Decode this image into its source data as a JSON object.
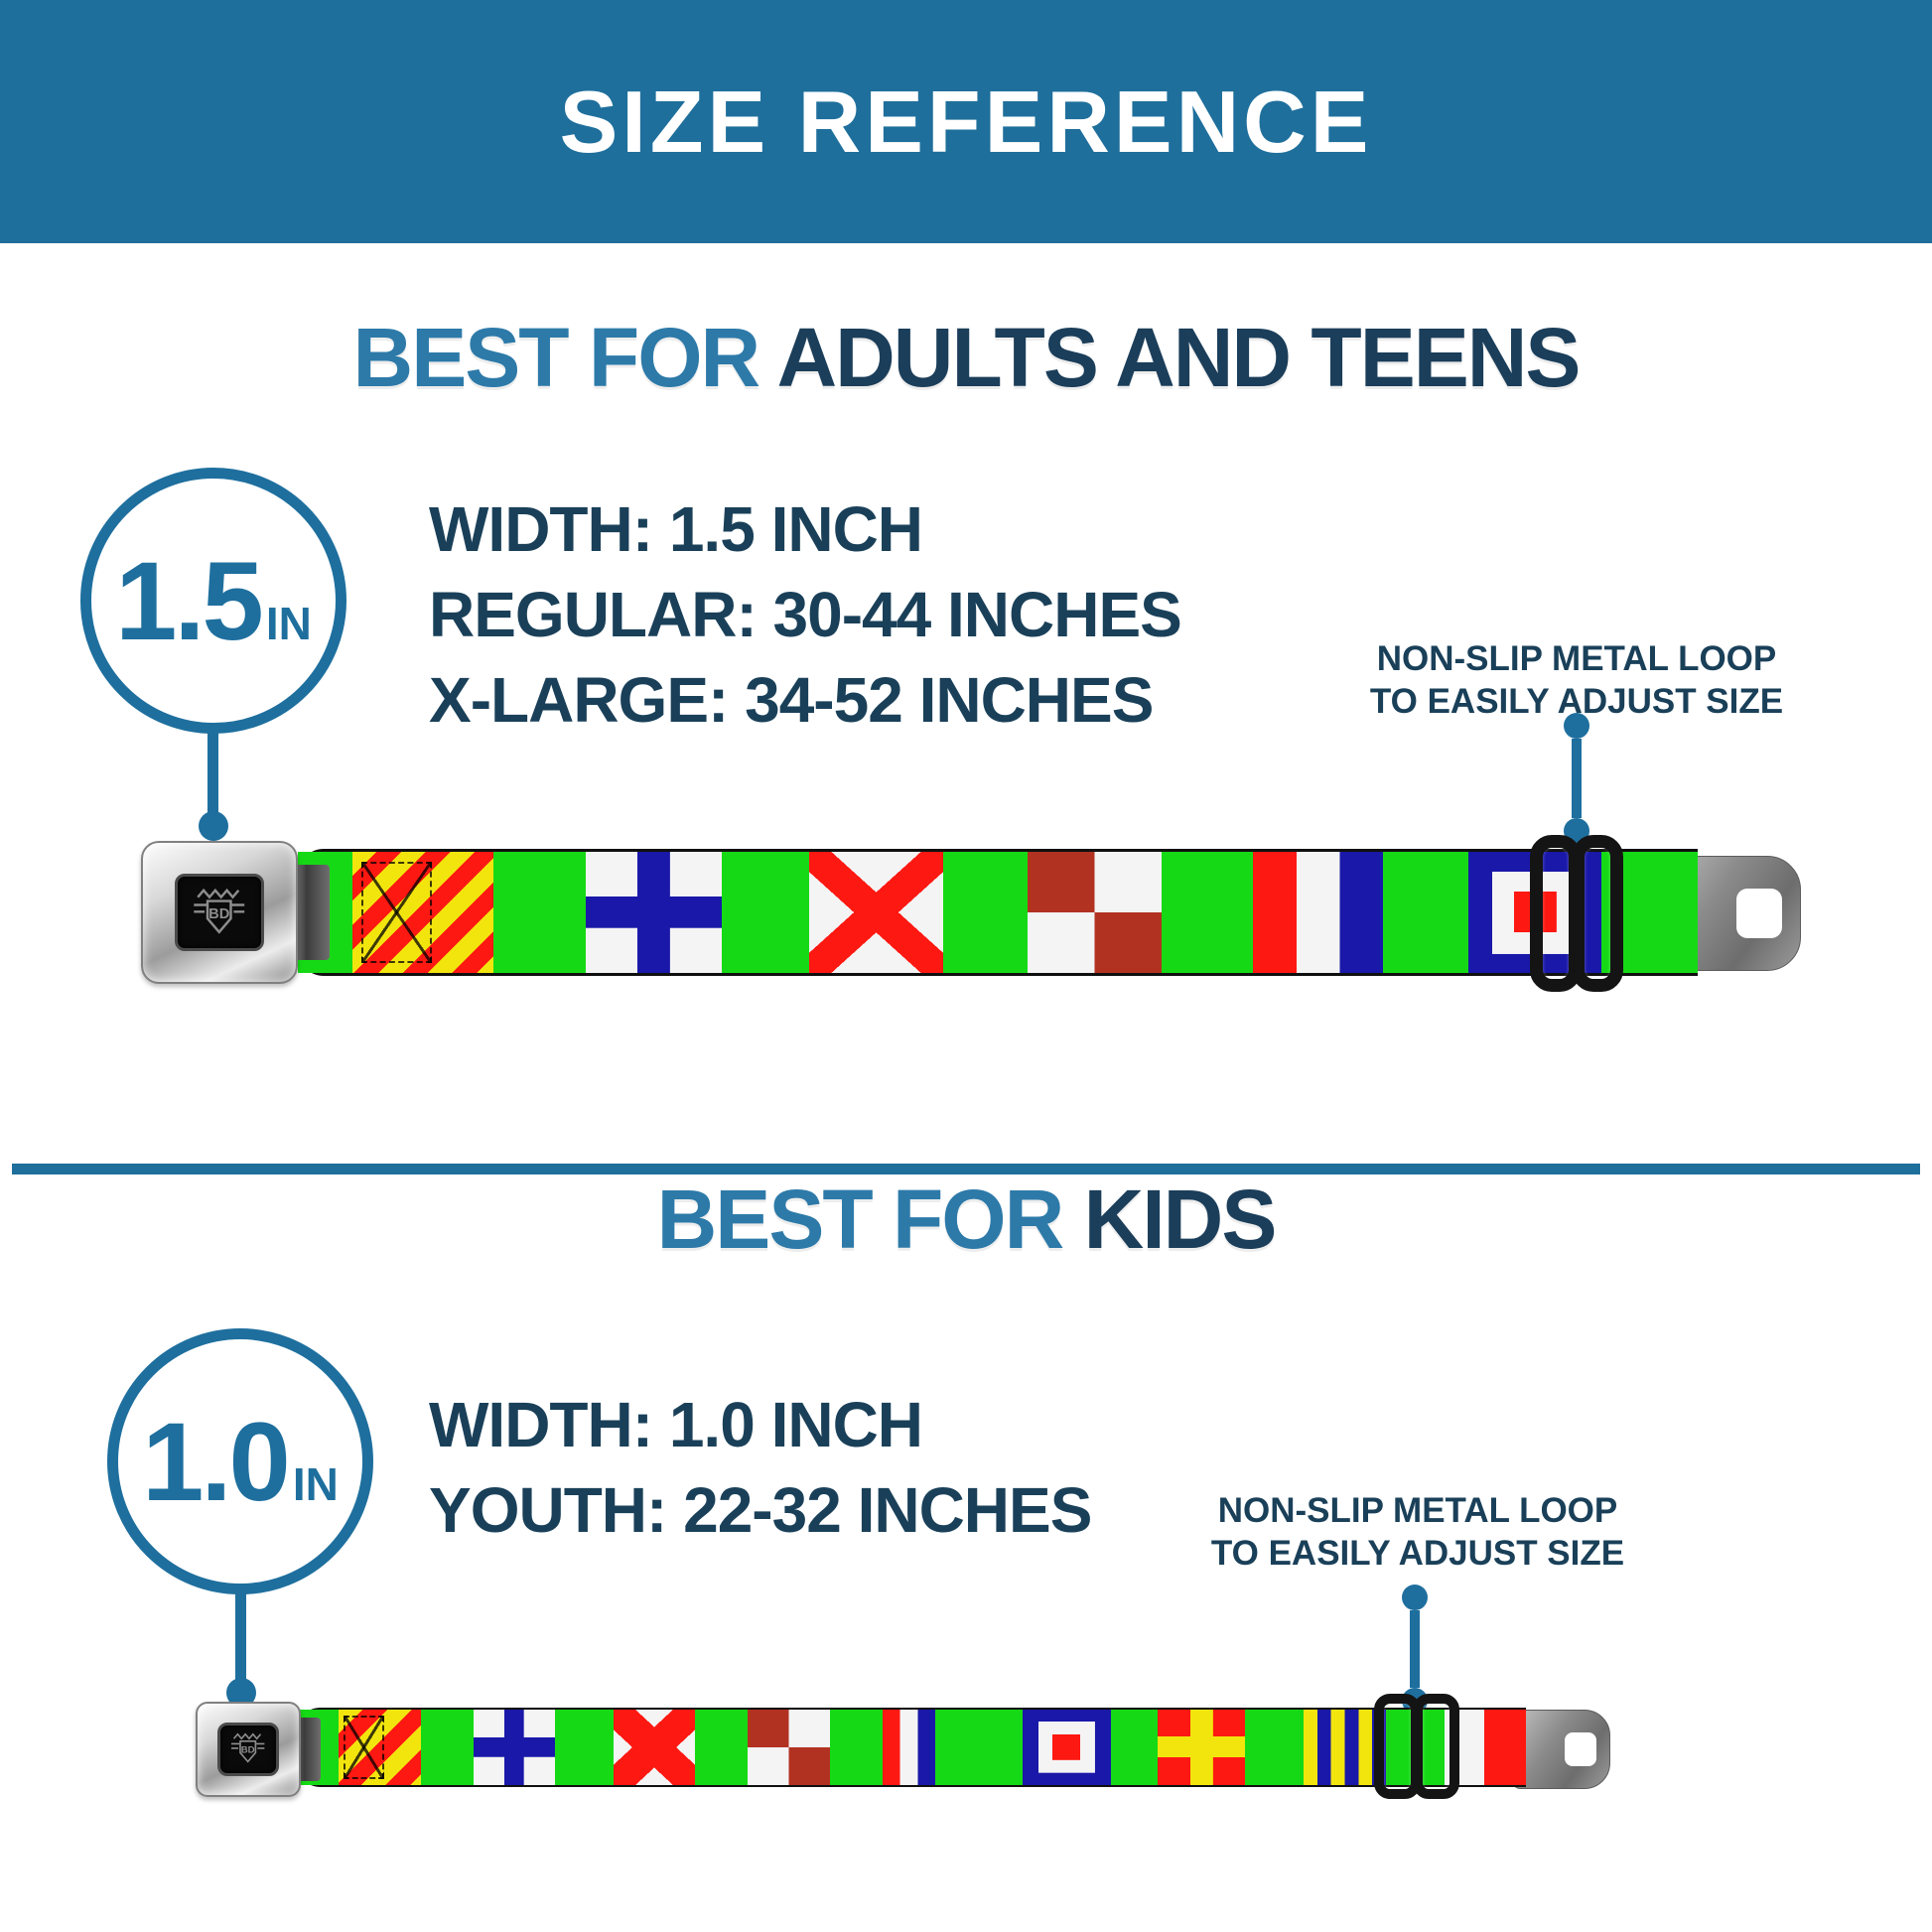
{
  "header": {
    "title": "SIZE REFERENCE"
  },
  "colors": {
    "banner": "#1f6f9c",
    "heading_light": "#2d7aa9",
    "heading_dark": "#1b3e5a",
    "text_navy": "#1a4059",
    "pointer_blue": "#1e6f9e",
    "webbing_green": "#16d916",
    "flag_red": "#fd1812",
    "flag_yellow": "#f2e50e",
    "flag_blue": "#1a18a8",
    "flag_dark_red": "#b23222"
  },
  "sections": [
    {
      "heading_light": "BEST FOR",
      "heading_dark": "ADULTS AND TEENS",
      "size_circle": {
        "value": "1.5",
        "unit": "IN"
      },
      "specs": [
        "WIDTH: 1.5 INCH",
        "REGULAR: 30-44 INCHES",
        "X-LARGE: 34-52 INCHES"
      ],
      "callout_lines": [
        "NON-SLIP METAL LOOP",
        "TO EASILY ADJUST SIZE"
      ],
      "belt": {
        "buckle_logo": "BD",
        "segments": [
          {
            "type": "green",
            "w": 55
          },
          {
            "type": "flag-y",
            "w": 142,
            "stitch": true
          },
          {
            "type": "green",
            "w": 93
          },
          {
            "type": "flag-x",
            "w": 137
          },
          {
            "type": "green",
            "w": 88
          },
          {
            "type": "flag-v",
            "w": 135
          },
          {
            "type": "green",
            "w": 85
          },
          {
            "type": "flag-u",
            "w": 135
          },
          {
            "type": "green",
            "w": 92
          },
          {
            "type": "flag-t",
            "w": 131
          },
          {
            "type": "green",
            "w": 86
          },
          {
            "type": "flag-w",
            "w": 134
          },
          {
            "type": "green",
            "w": 97
          }
        ]
      }
    },
    {
      "heading_light": "BEST FOR",
      "heading_dark": "KIDS",
      "size_circle": {
        "value": "1.0",
        "unit": "IN"
      },
      "specs": [
        "WIDTH: 1.0 INCH",
        "YOUTH: 22-32 INCHES"
      ],
      "callout_lines": [
        "NON-SLIP METAL LOOP",
        "TO EASILY ADJUST SIZE"
      ],
      "belt": {
        "buckle_logo": "BD",
        "segments": [
          {
            "type": "green",
            "w": 44
          },
          {
            "type": "flag-y",
            "w": 83,
            "stitch": true
          },
          {
            "type": "green",
            "w": 53
          },
          {
            "type": "flag-x",
            "w": 82
          },
          {
            "type": "green",
            "w": 59
          },
          {
            "type": "flag-v",
            "w": 82
          },
          {
            "type": "green",
            "w": 53
          },
          {
            "type": "flag-u",
            "w": 83
          },
          {
            "type": "green",
            "w": 53
          },
          {
            "type": "flag-t",
            "w": 53
          },
          {
            "type": "green",
            "w": 88
          },
          {
            "type": "flag-w",
            "w": 89
          },
          {
            "type": "green",
            "w": 47
          },
          {
            "type": "flag-r",
            "w": 88
          },
          {
            "type": "green",
            "w": 59
          },
          {
            "type": "flag-g",
            "w": 83
          },
          {
            "type": "green",
            "w": 59
          },
          {
            "type": "white",
            "w": 40
          },
          {
            "type": "red",
            "w": 42
          }
        ]
      }
    }
  ]
}
